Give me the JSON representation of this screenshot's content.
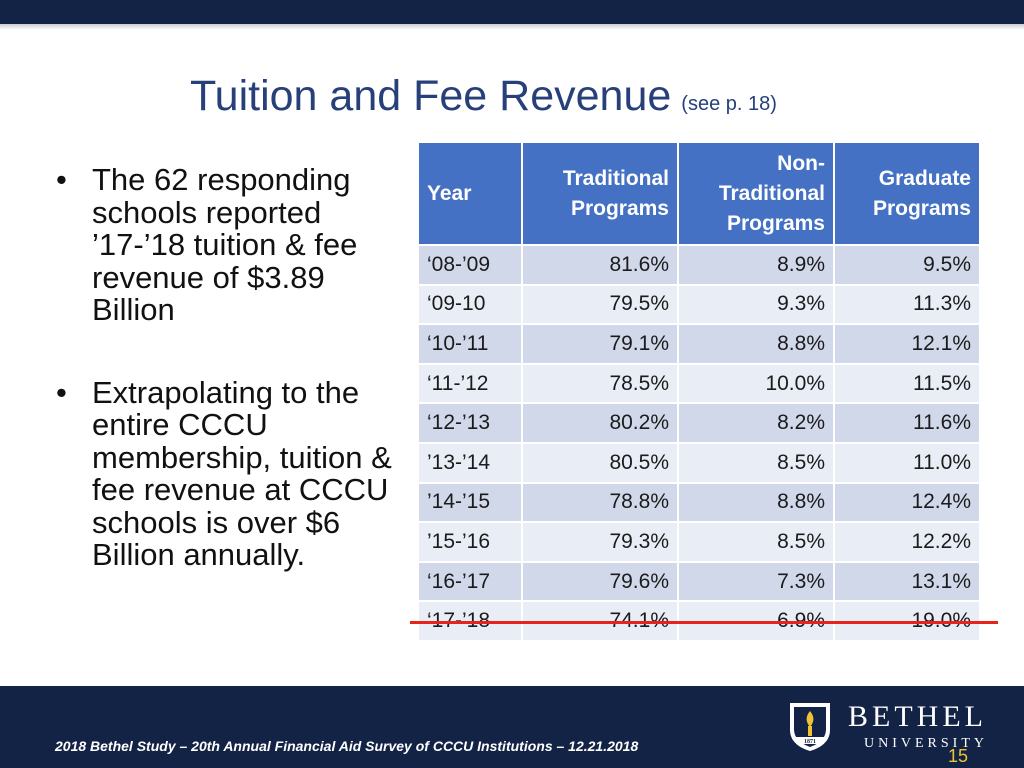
{
  "title": {
    "main": "Tuition and Fee Revenue",
    "sub": "(see p. 18)"
  },
  "bullets": [
    {
      "marker": "•",
      "text": "The 62 responding schools reported ’17-’18 tuition & fee revenue of $3.89 Billion"
    },
    {
      "marker": "•",
      "text": "Extrapolating to the entire CCCU membership, tuition & fee revenue at CCCU schools is over $6 Billion annually."
    }
  ],
  "table": {
    "headers": {
      "year": "Year",
      "traditional": [
        "Traditional",
        "Programs"
      ],
      "nontraditional": [
        "Non-",
        "Traditional",
        "Programs"
      ],
      "graduate": [
        "Graduate",
        "Programs"
      ]
    },
    "rows": [
      {
        "year": "‘08-’09",
        "traditional": "81.6%",
        "nontraditional": "8.9%",
        "graduate": "9.5%"
      },
      {
        "year": "‘09-10",
        "traditional": "79.5%",
        "nontraditional": "9.3%",
        "graduate": "11.3%"
      },
      {
        "year": "‘10-’11",
        "traditional": "79.1%",
        "nontraditional": "8.8%",
        "graduate": "12.1%"
      },
      {
        "year": "‘11-’12",
        "traditional": "78.5%",
        "nontraditional": "10.0%",
        "graduate": "11.5%"
      },
      {
        "year": "‘12-’13",
        "traditional": "80.2%",
        "nontraditional": "8.2%",
        "graduate": "11.6%"
      },
      {
        "year": "’13-’14",
        "traditional": "80.5%",
        "nontraditional": "8.5%",
        "graduate": "11.0%"
      },
      {
        "year": "’14-’15",
        "traditional": "78.8%",
        "nontraditional": "8.8%",
        "graduate": "12.4%"
      },
      {
        "year": "’15-’16",
        "traditional": "79.3%",
        "nontraditional": "8.5%",
        "graduate": "12.2%"
      },
      {
        "year": "‘16-’17",
        "traditional": "79.6%",
        "nontraditional": "7.3%",
        "graduate": "13.1%"
      },
      {
        "year": "‘17-’18",
        "traditional": "74.1%",
        "nontraditional": "6.9%",
        "graduate": "19.0%"
      }
    ]
  },
  "footer": {
    "caption": "2018 Bethel Study – 20th Annual Financial Aid Survey of CCCU Institutions – 12.21.2018",
    "logo": {
      "name": "BETHEL",
      "sub": "UNIVERSITY",
      "year": "1871"
    },
    "page_number": "15"
  },
  "colors": {
    "header_bg": "#4471c4",
    "row_dark": "#d0d8ea",
    "row_light": "#e9edf5",
    "title": "#27407a",
    "bar": "#132345",
    "highlight_line": "#e8221c",
    "page_number": "#f1c232"
  }
}
